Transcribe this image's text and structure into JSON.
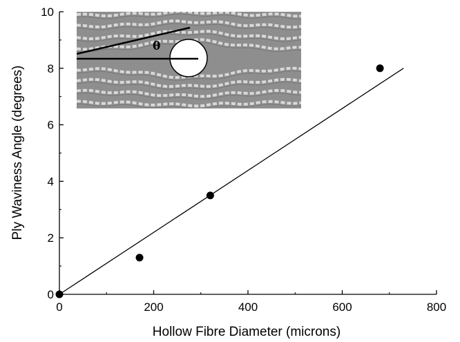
{
  "chart_data": {
    "type": "scatter",
    "title": "",
    "xlabel": "Hollow Fibre Diameter (microns)",
    "ylabel": "Ply Waviness Angle (degrees)",
    "xlim": [
      0,
      800
    ],
    "ylim": [
      0,
      10
    ],
    "x_ticks": [
      "0",
      "200",
      "400",
      "600",
      "800"
    ],
    "y_ticks": [
      "0",
      "2",
      "4",
      "6",
      "8",
      "10"
    ],
    "grid": false,
    "legend": "none",
    "series": [
      {
        "points": [
          {
            "x": 0,
            "y": 0
          },
          {
            "x": 170,
            "y": 1.3
          },
          {
            "x": 320,
            "y": 3.5
          },
          {
            "x": 680,
            "y": 8.0
          }
        ],
        "marker": "filled-circle",
        "color": "#000000"
      }
    ],
    "fit_line": {
      "x": [
        0,
        730
      ],
      "y": [
        0,
        8.0
      ],
      "color": "#000000"
    },
    "inset": {
      "description_label": "θ",
      "kind": "micrograph with hollow fibre and waviness angle"
    }
  }
}
